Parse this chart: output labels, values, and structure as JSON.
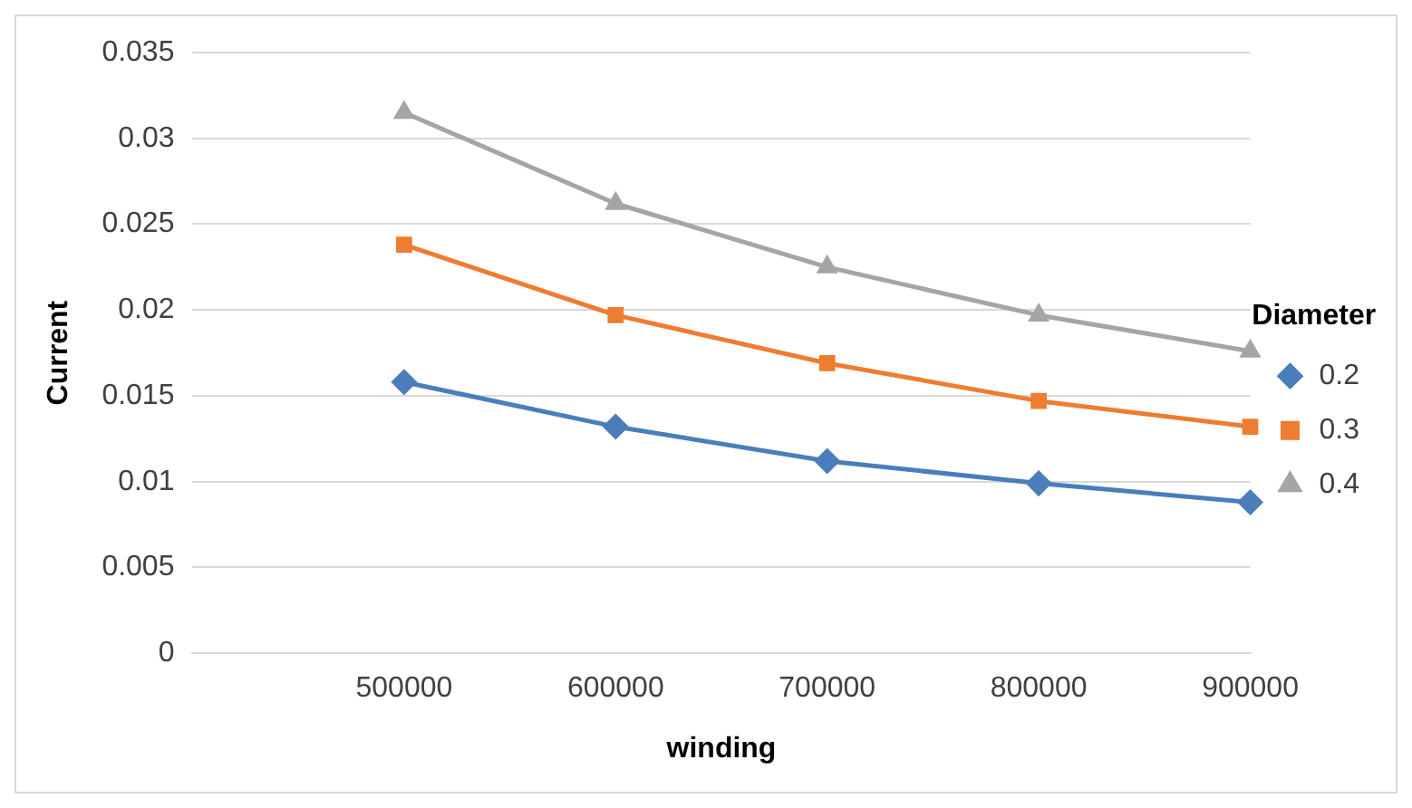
{
  "chart_data": {
    "type": "line",
    "xlabel": "winding",
    "ylabel": "Current",
    "legend_title": "Diameter",
    "legend": "right",
    "grid": "y",
    "categories": [
      null,
      "500000",
      "600000",
      "700000",
      "800000",
      "900000"
    ],
    "ylim": [
      0,
      0.035
    ],
    "yticks": [
      0,
      0.005,
      0.01,
      0.015,
      0.02,
      0.025,
      0.03,
      0.035
    ],
    "series": [
      {
        "name": "0.2",
        "color": "#4a7ebb",
        "marker": "diamond",
        "values": [
          null,
          0.0158,
          0.0132,
          0.0112,
          0.0099,
          0.0088
        ]
      },
      {
        "name": "0.3",
        "color": "#ed7d31",
        "marker": "square",
        "values": [
          null,
          0.0238,
          0.0197,
          0.0169,
          0.0147,
          0.0132
        ]
      },
      {
        "name": "0.4",
        "color": "#a5a5a5",
        "marker": "triangle",
        "values": [
          null,
          0.0315,
          0.0262,
          0.0225,
          0.0197,
          0.0176
        ]
      }
    ]
  }
}
